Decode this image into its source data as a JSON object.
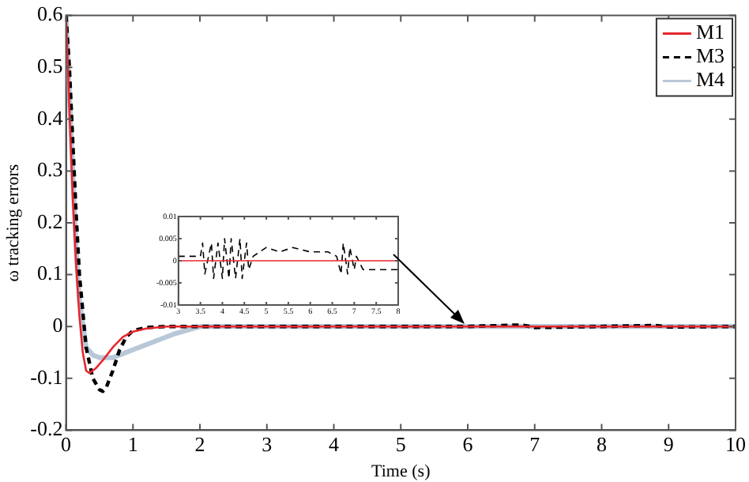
{
  "chart_data": [
    {
      "type": "line",
      "xlabel": "Time (s)",
      "ylabel": "ω tracking errors",
      "xlim": [
        0,
        10
      ],
      "ylim": [
        -0.2,
        0.6
      ],
      "xticks": [
        0,
        1,
        2,
        3,
        4,
        5,
        6,
        7,
        8,
        9,
        10
      ],
      "yticks": [
        -0.2,
        -0.1,
        0,
        0.1,
        0.2,
        0.3,
        0.4,
        0.5,
        0.6
      ],
      "grid": false,
      "legend": "top right",
      "marker": "none",
      "series": [
        {
          "name": "M1",
          "color": "#e8262e",
          "line_style": "solid",
          "x": [
            0,
            0.05,
            0.1,
            0.15,
            0.2,
            0.25,
            0.3,
            0.35,
            0.45,
            0.55,
            0.7,
            0.85,
            1.0,
            1.2,
            1.5,
            2,
            4,
            6,
            8,
            10
          ],
          "values": [
            0.6,
            0.42,
            0.25,
            0.12,
            0.02,
            -0.05,
            -0.085,
            -0.09,
            -0.08,
            -0.065,
            -0.04,
            -0.02,
            -0.01,
            -0.004,
            0,
            0,
            0,
            0,
            0,
            0
          ]
        },
        {
          "name": "M3",
          "color": "#000000",
          "line_style": "dashed",
          "x": [
            0,
            0.05,
            0.1,
            0.15,
            0.2,
            0.3,
            0.4,
            0.5,
            0.55,
            0.6,
            0.7,
            0.8,
            0.9,
            1.0,
            1.2,
            1.5,
            2,
            3,
            4,
            5,
            6,
            6.8,
            7,
            8,
            8.8,
            9,
            10
          ],
          "values": [
            0.6,
            0.5,
            0.36,
            0.22,
            0.1,
            -0.04,
            -0.1,
            -0.122,
            -0.125,
            -0.118,
            -0.085,
            -0.045,
            -0.02,
            -0.008,
            -0.002,
            0,
            0,
            0,
            0,
            0,
            0,
            0.003,
            -0.002,
            0,
            0.002,
            -0.001,
            0
          ]
        },
        {
          "name": "M4",
          "color": "#b8c8d8",
          "line_style": "solid",
          "x": [
            0,
            0.05,
            0.1,
            0.15,
            0.2,
            0.3,
            0.4,
            0.5,
            0.7,
            1.0,
            1.3,
            1.6,
            2.0,
            4,
            6,
            8,
            10
          ],
          "values": [
            0.6,
            0.45,
            0.3,
            0.15,
            0.05,
            -0.04,
            -0.055,
            -0.06,
            -0.06,
            -0.045,
            -0.03,
            -0.015,
            0,
            0,
            0,
            0,
            0
          ]
        }
      ]
    },
    {
      "type": "line",
      "xlim": [
        3,
        8
      ],
      "ylim": [
        -0.01,
        0.01
      ],
      "xticks": [
        3,
        3.5,
        4,
        4.5,
        5,
        5.5,
        6,
        6.5,
        7,
        7.5,
        8
      ],
      "yticks": [
        -0.01,
        -0.005,
        0,
        0.005,
        0.01
      ],
      "grid": false,
      "legend": false,
      "marker": "none",
      "series": [
        {
          "color": "#e8262e",
          "line_style": "solid",
          "x": [
            3,
            8
          ],
          "values": [
            0,
            0
          ]
        },
        {
          "color": "#000000",
          "line_style": "dashed",
          "x": [
            3,
            3.5,
            3.55,
            3.6,
            3.75,
            3.8,
            3.9,
            4.0,
            4.05,
            4.15,
            4.2,
            4.3,
            4.4,
            4.45,
            4.55,
            4.6,
            4.7,
            5.0,
            5.3,
            5.6,
            6.0,
            6.4,
            6.6,
            6.7,
            6.75,
            6.85,
            6.9,
            7.0,
            7.05,
            7.2,
            7.5,
            8
          ],
          "values": [
            0.001,
            0.001,
            0.004,
            -0.003,
            0.004,
            -0.004,
            0.004,
            -0.004,
            0.005,
            -0.004,
            0.005,
            -0.004,
            0.005,
            -0.004,
            0.004,
            -0.002,
            0.001,
            0.003,
            0.002,
            0.003,
            0.002,
            0.002,
            0.001,
            -0.003,
            0.004,
            -0.003,
            0.003,
            -0.002,
            0.001,
            -0.002,
            -0.002,
            -0.002
          ]
        }
      ]
    }
  ]
}
